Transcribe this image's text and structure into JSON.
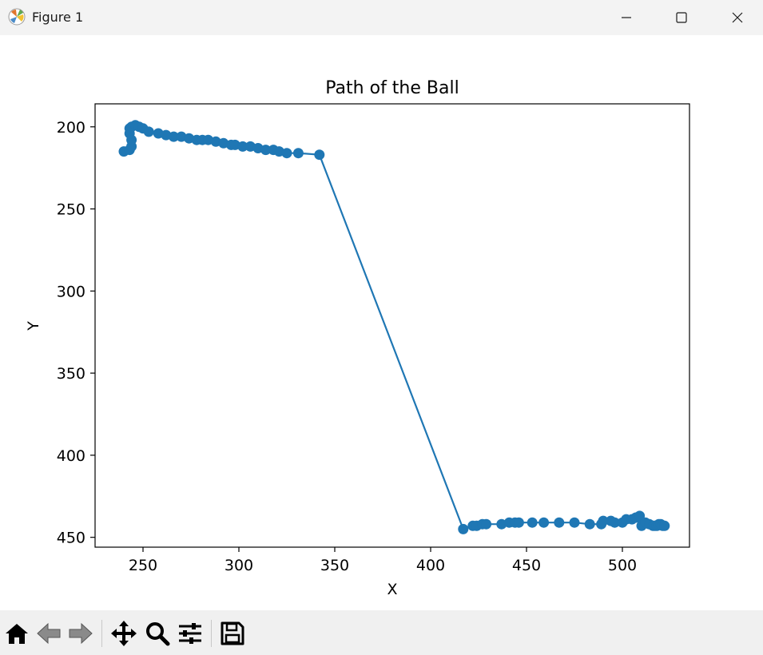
{
  "window": {
    "title": "Figure 1"
  },
  "icons": {
    "app": "matplotlib-icon",
    "minimize": "minimize-icon",
    "maximize": "maximize-icon",
    "close": "close-icon",
    "home": "home-icon",
    "back": "back-arrow-icon",
    "forward": "forward-arrow-icon",
    "pan": "move-arrows-icon",
    "zoom": "magnifier-icon",
    "configure": "sliders-icon",
    "save": "floppy-disk-icon"
  },
  "chart_data": {
    "type": "line",
    "title": "Path of the Ball",
    "xlabel": "X",
    "ylabel": "Y",
    "xlim": [
      225,
      535
    ],
    "ylim": [
      456,
      186
    ],
    "y_inverted": true,
    "xticks": [
      250,
      300,
      350,
      400,
      450,
      500
    ],
    "yticks": [
      200,
      250,
      300,
      350,
      400,
      450
    ],
    "grid": false,
    "color": "#1f77b4",
    "marker": "circle",
    "series": [
      {
        "x": [
          240,
          243,
          244,
          244,
          243,
          243,
          244,
          246,
          248,
          250,
          253,
          258,
          262,
          266,
          270,
          274,
          278,
          281,
          284,
          288,
          292,
          296,
          298,
          302,
          306,
          310,
          314,
          318,
          321,
          325,
          331,
          342,
          417,
          422,
          424,
          427,
          429,
          437,
          441,
          444,
          446,
          453,
          459,
          467,
          475,
          483,
          489,
          490,
          494,
          496,
          500,
          502,
          505,
          507,
          509,
          510,
          512,
          514,
          516,
          517,
          518,
          519,
          520,
          521,
          522
        ],
        "y": [
          215,
          214,
          212,
          208,
          204,
          201,
          200,
          199,
          200,
          201,
          203,
          204,
          205,
          206,
          206,
          207,
          208,
          208,
          208,
          209,
          210,
          211,
          211,
          212,
          212,
          213,
          214,
          214,
          215,
          216,
          216,
          217,
          445,
          443,
          443,
          442,
          442,
          442,
          441,
          441,
          441,
          441,
          441,
          441,
          441,
          442,
          442,
          440,
          440,
          441,
          441,
          439,
          439,
          438,
          437,
          443,
          441,
          442,
          443,
          443,
          443,
          442,
          442,
          443,
          443
        ]
      }
    ]
  }
}
